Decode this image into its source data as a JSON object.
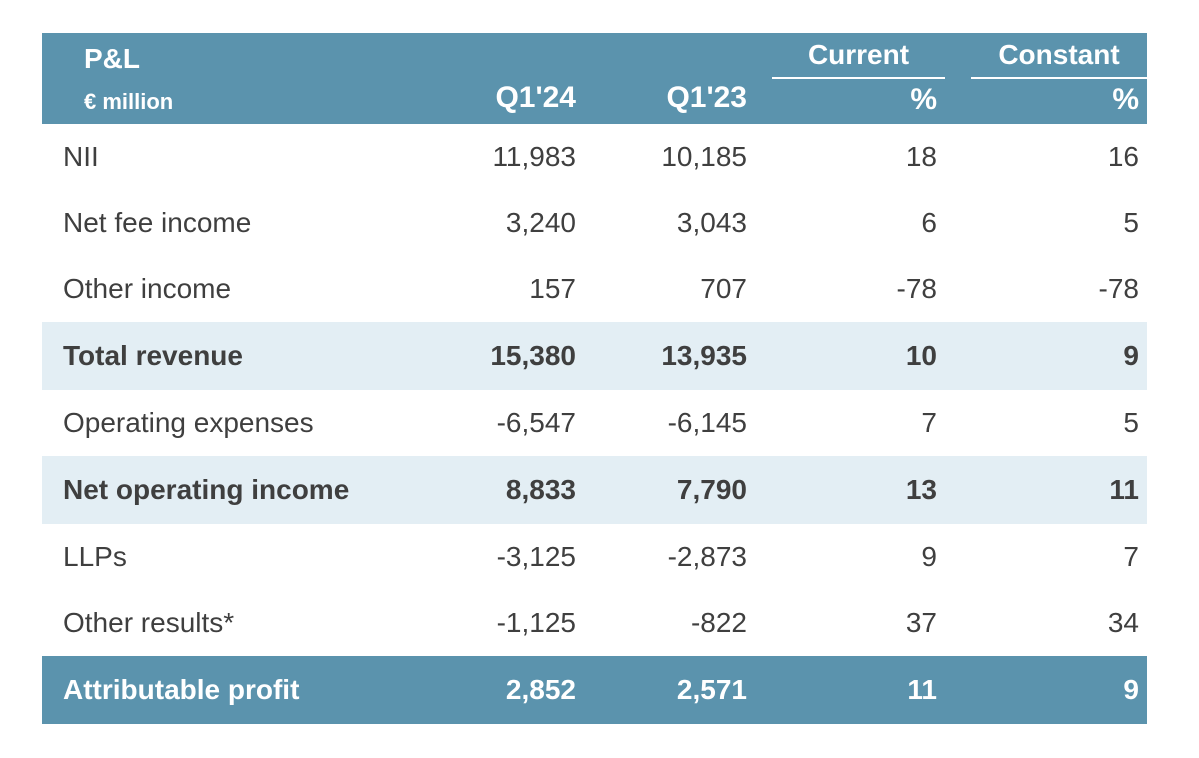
{
  "header": {
    "title": "P&L",
    "subtitle": "€ million",
    "col_q1_24": "Q1'24",
    "col_q1_23": "Q1'23",
    "group_current": "Current",
    "group_constant": "Constant",
    "pct_current": "%",
    "pct_constant": "%"
  },
  "chart_data": {
    "type": "table",
    "title": "P&L",
    "unit": "€ million",
    "columns": [
      "Q1'24",
      "Q1'23",
      "Current %",
      "Constant %"
    ],
    "rows": [
      {
        "label": "NII",
        "q1_24": "11,983",
        "q1_23": "10,185",
        "current": "18",
        "constant": "16",
        "style": "normal"
      },
      {
        "label": "Net fee income",
        "q1_24": "3,240",
        "q1_23": "3,043",
        "current": "6",
        "constant": "5",
        "style": "normal"
      },
      {
        "label": "Other income",
        "q1_24": "157",
        "q1_23": "707",
        "current": "-78",
        "constant": "-78",
        "style": "normal"
      },
      {
        "label": "Total revenue",
        "q1_24": "15,380",
        "q1_23": "13,935",
        "current": "10",
        "constant": "9",
        "style": "subtotal"
      },
      {
        "label": "Operating expenses",
        "q1_24": "-6,547",
        "q1_23": "-6,145",
        "current": "7",
        "constant": "5",
        "style": "normal"
      },
      {
        "label": "Net operating income",
        "q1_24": "8,833",
        "q1_23": "7,790",
        "current": "13",
        "constant": "11",
        "style": "subtotal"
      },
      {
        "label": "LLPs",
        "q1_24": "-3,125",
        "q1_23": "-2,873",
        "current": "9",
        "constant": "7",
        "style": "normal"
      },
      {
        "label": "Other results*",
        "q1_24": "-1,125",
        "q1_23": "-822",
        "current": "37",
        "constant": "34",
        "style": "normal"
      },
      {
        "label": "Attributable profit",
        "q1_24": "2,852",
        "q1_23": "2,571",
        "current": "11",
        "constant": "9",
        "style": "total"
      }
    ]
  },
  "colors": {
    "header_bg": "#5b93ad",
    "subtotal_bg": "#e3eef4",
    "text": "#3f3f3f",
    "header_text": "#ffffff"
  }
}
